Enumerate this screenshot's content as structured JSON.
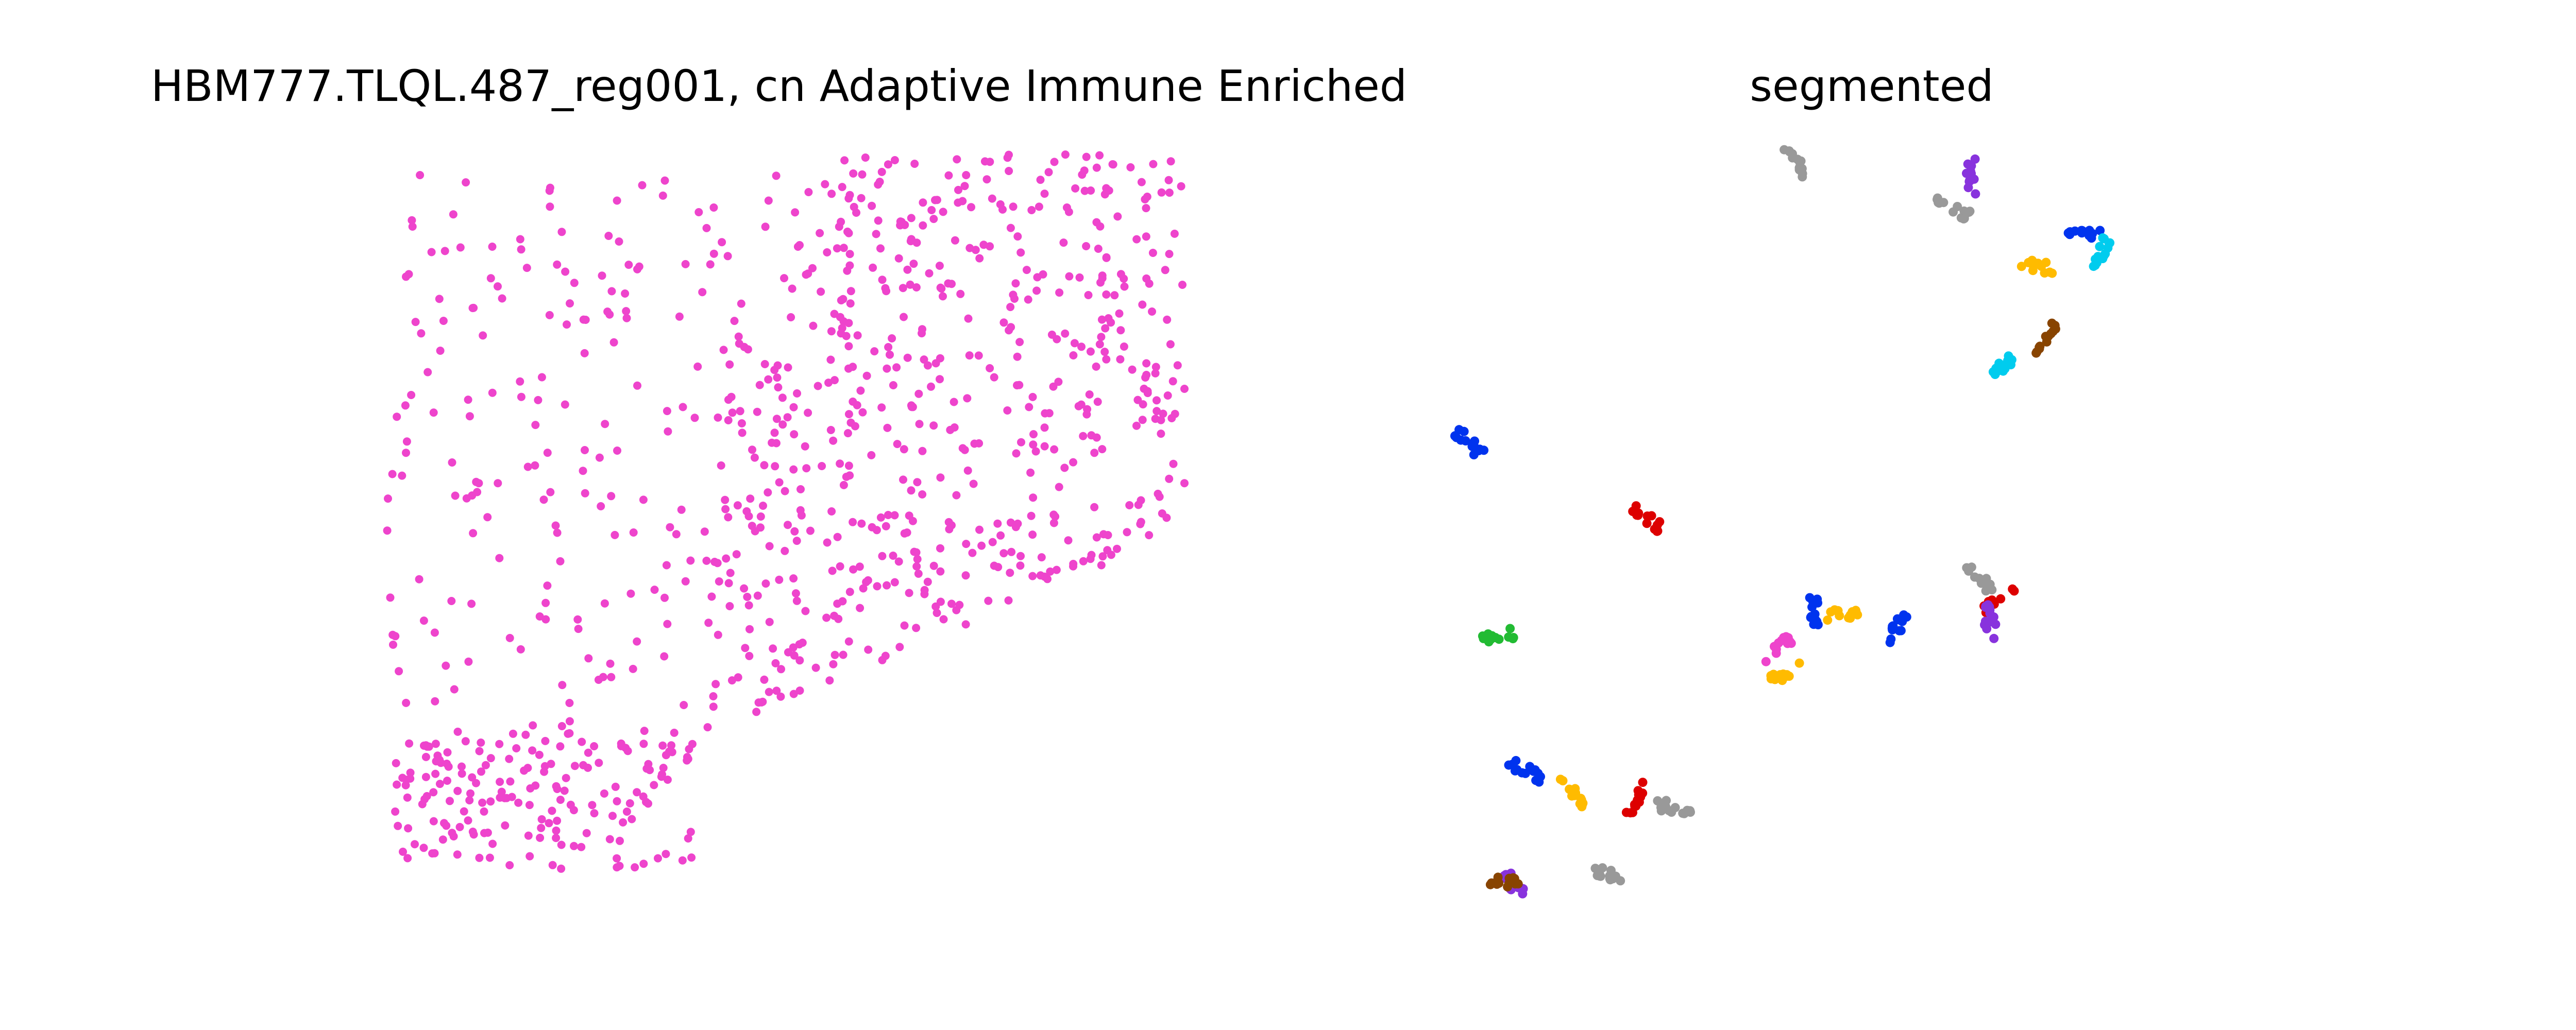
{
  "chart_data": [
    {
      "type": "scatter",
      "title": "HBM777.TLQL.487_reg001, cn Adaptive Immune Enriched",
      "axes_visible": false,
      "grid": false,
      "point_color": "#ee44cc",
      "xlim": [
        0,
        100
      ],
      "ylim": [
        0,
        100
      ],
      "series": [
        {
          "x": [],
          "y": [],
          "regions": [
            {
              "x": [
                3,
                97
              ],
              "y": [
                4,
                98
              ],
              "count": 420
            },
            {
              "x": [
                42,
                99
              ],
              "y": [
                25,
                78
              ],
              "count": 260
            },
            {
              "x": [
                5,
                40
              ],
              "y": [
                2,
                22
              ],
              "count": 160
            },
            {
              "x": [
                55,
                99
              ],
              "y": [
                80,
                100
              ],
              "count": 120
            }
          ]
        }
      ]
    },
    {
      "type": "scatter",
      "title": "segmented",
      "axes_visible": false,
      "grid": false,
      "xlim": [
        0,
        100
      ],
      "ylim": [
        0,
        100
      ],
      "series": [
        {
          "color": "#0033ee",
          "clusters": [
            [
              3,
              61
            ],
            [
              9,
              17
            ],
            [
              40,
              39
            ],
            [
              49,
              36
            ],
            [
              69,
              89
            ]
          ]
        },
        {
          "color": "#ffbb00",
          "clusters": [
            [
              14,
              14
            ],
            [
              43,
              38
            ],
            [
              37,
              30
            ],
            [
              64,
              85
            ]
          ]
        },
        {
          "color": "#dd0000",
          "clusters": [
            [
              22,
              51
            ],
            [
              21,
              13
            ],
            [
              60,
              40
            ]
          ]
        },
        {
          "color": "#999999",
          "clusters": [
            [
              38,
              99
            ],
            [
              55,
              93
            ],
            [
              25,
              12
            ],
            [
              18,
              3
            ],
            [
              58,
              43
            ]
          ]
        },
        {
          "color": "#8833dd",
          "clusters": [
            [
              57,
              97
            ],
            [
              8,
              1
            ],
            [
              59,
              37
            ]
          ]
        },
        {
          "color": "#00ccee",
          "clusters": [
            [
              61,
              72
            ],
            [
              71,
              87
            ]
          ]
        },
        {
          "color": "#884400",
          "clusters": [
            [
              65,
              75
            ],
            [
              7,
              2
            ]
          ]
        },
        {
          "color": "#22bb33",
          "clusters": [
            [
              6,
              35
            ]
          ]
        },
        {
          "color": "#ee44cc",
          "clusters": [
            [
              36,
              33
            ]
          ]
        }
      ]
    }
  ]
}
